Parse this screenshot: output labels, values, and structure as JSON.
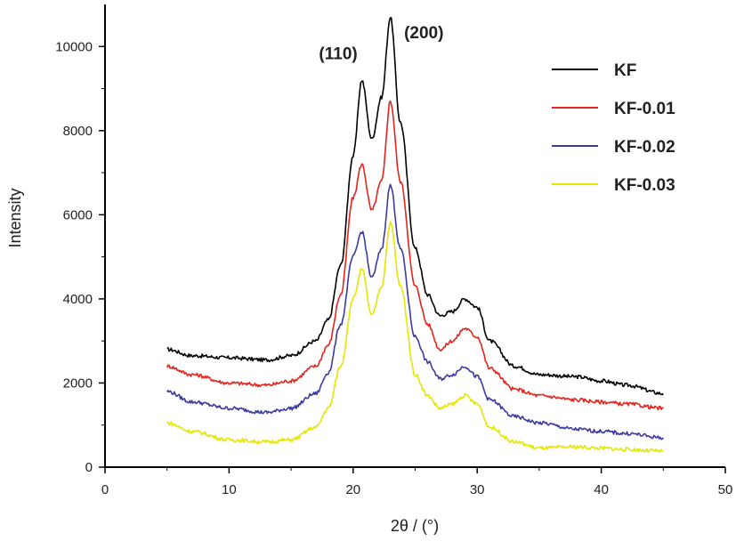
{
  "chart_data": {
    "type": "line",
    "title": "",
    "xlabel": "2θ / (°)",
    "ylabel": "Intensity",
    "xlim": [
      0,
      50
    ],
    "ylim": [
      0,
      11000
    ],
    "xticks": [
      0,
      10,
      20,
      30,
      40,
      50
    ],
    "yticks": [
      0,
      2000,
      4000,
      6000,
      8000,
      10000
    ],
    "legend_position": "top-right",
    "annotations": [
      {
        "text": "(110)",
        "x": 18.8,
        "y": 9700
      },
      {
        "text": "(200)",
        "x": 25.7,
        "y": 10200
      }
    ],
    "x": [
      5,
      7,
      10,
      13,
      15,
      17,
      18,
      19,
      20,
      20.7,
      21.5,
      22.3,
      23,
      23.8,
      25,
      26,
      27,
      28,
      29,
      30,
      31,
      33,
      35,
      38,
      40,
      42,
      45
    ],
    "series": [
      {
        "name": "KF",
        "color": "#000000",
        "values": [
          2800,
          2650,
          2600,
          2550,
          2650,
          3000,
          3500,
          4800,
          7400,
          9200,
          7800,
          8800,
          10700,
          8200,
          5200,
          4100,
          3600,
          3700,
          4000,
          3800,
          3000,
          2400,
          2200,
          2150,
          2050,
          1950,
          1750
        ]
      },
      {
        "name": "KF-0.01",
        "color": "#e8231c",
        "values": [
          2400,
          2200,
          2000,
          1950,
          2050,
          2400,
          2900,
          4100,
          6400,
          7200,
          6100,
          6800,
          8700,
          6800,
          4300,
          3400,
          2800,
          3000,
          3300,
          3100,
          2350,
          1850,
          1700,
          1600,
          1550,
          1500,
          1400
        ]
      },
      {
        "name": "KF-0.02",
        "color": "#3b3aa0",
        "values": [
          1800,
          1550,
          1400,
          1300,
          1400,
          1750,
          2250,
          3400,
          5000,
          5600,
          4500,
          5200,
          6700,
          5200,
          3100,
          2500,
          2100,
          2200,
          2400,
          2150,
          1600,
          1200,
          1050,
          900,
          850,
          800,
          700
        ]
      },
      {
        "name": "KF-0.03",
        "color": "#e6e600",
        "values": [
          1050,
          850,
          650,
          600,
          650,
          950,
          1400,
          2400,
          4000,
          4700,
          3600,
          4300,
          5800,
          4300,
          2200,
          1700,
          1400,
          1500,
          1700,
          1500,
          950,
          600,
          450,
          480,
          450,
          420,
          380
        ]
      }
    ]
  }
}
